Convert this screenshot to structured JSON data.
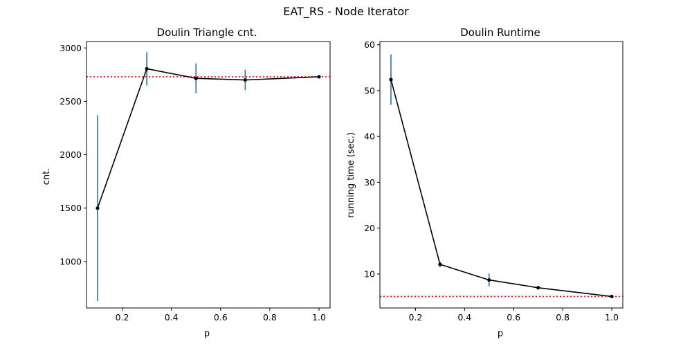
{
  "figure": {
    "suptitle": "EAT_RS - Node Iterator"
  },
  "chart_data": [
    {
      "type": "line",
      "title": "Doulin Triangle cnt.",
      "xlabel": "p",
      "ylabel": "cnt.",
      "x": [
        0.1,
        0.3,
        0.5,
        0.7,
        1.0
      ],
      "xticks": [
        0.2,
        0.4,
        0.6,
        0.8,
        1.0
      ],
      "xtick_labels": [
        "0.2",
        "0.4",
        "0.6",
        "0.8",
        "1.0"
      ],
      "yticks": [
        1000,
        1500,
        2000,
        2500,
        3000
      ],
      "ytick_labels": [
        "1000",
        "1500",
        "2000",
        "2500",
        "3000"
      ],
      "xlim": [
        0.055,
        1.045
      ],
      "ylim": [
        565,
        3060
      ],
      "series": [
        {
          "values": [
            1500,
            2805,
            2715,
            2700,
            2730
          ],
          "error": [
            870,
            155,
            140,
            95,
            0
          ],
          "line_color": "#000000",
          "error_color": "#1f77b4"
        }
      ],
      "reference_line": {
        "y": 2730,
        "color": "#ff0000",
        "style": "dotted"
      },
      "grid": false,
      "legend": "none"
    },
    {
      "type": "line",
      "title": "Doulin Runtime",
      "xlabel": "p",
      "ylabel": "running time (sec.)",
      "x": [
        0.1,
        0.3,
        0.5,
        0.7,
        1.0
      ],
      "xticks": [
        0.2,
        0.4,
        0.6,
        0.8,
        1.0
      ],
      "xtick_labels": [
        "0.2",
        "0.4",
        "0.6",
        "0.8",
        "1.0"
      ],
      "yticks": [
        10,
        20,
        30,
        40,
        50,
        60
      ],
      "ytick_labels": [
        "10",
        "20",
        "30",
        "40",
        "50",
        "60"
      ],
      "xlim": [
        0.055,
        1.045
      ],
      "ylim": [
        2.6,
        60.7
      ],
      "series": [
        {
          "values": [
            52.4,
            12.1,
            8.7,
            7.0,
            5.1
          ],
          "error": [
            5.5,
            0.6,
            1.4,
            0.2,
            0.0
          ],
          "line_color": "#000000",
          "error_color": "#1f77b4"
        }
      ],
      "reference_line": {
        "y": 5.1,
        "color": "#ff0000",
        "style": "dotted"
      },
      "grid": false,
      "legend": "none"
    }
  ]
}
